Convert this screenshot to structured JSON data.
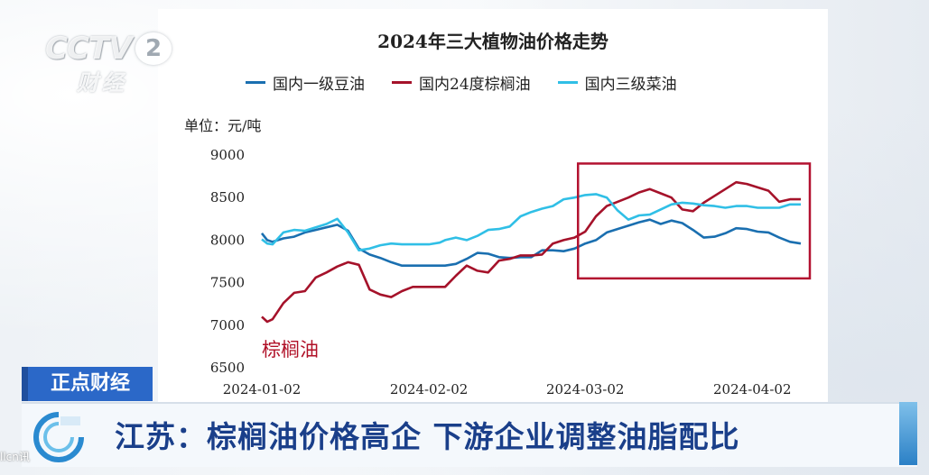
{
  "broadcast": {
    "logo_text": "CCTV",
    "logo_number": "2",
    "logo_channel": "财经",
    "program_tag": "正点财经",
    "headline": "江苏：棕榈油价格高企 下游企业调整油脂配比",
    "source_mark": "llcn讯"
  },
  "colors": {
    "soy": "#1a6fb0",
    "palm": "#a5122a",
    "rapeseed": "#30bfe6",
    "highlight_box": "#b31230",
    "program_tag_bg": "#2b68c8",
    "headline_text": "#1a3f8a"
  },
  "chart_data": {
    "type": "line",
    "title": "2024年三大植物油价格走势",
    "unit_label": "单位：元/吨",
    "annotation": "棕榈油",
    "x_tick_labels": [
      "2024-01-02",
      "2024-02-02",
      "2024-03-02",
      "2024-04-02"
    ],
    "x_ticks": [
      0,
      31,
      60,
      91
    ],
    "xlim": [
      0,
      100
    ],
    "ylim": [
      6500,
      9000
    ],
    "y_ticks": [
      6500,
      7000,
      7500,
      8000,
      8500,
      9000
    ],
    "grid": false,
    "legend_position": "top",
    "highlight_box_x": [
      59,
      100
    ],
    "highlight_box_y": [
      7550,
      8900
    ],
    "series": [
      {
        "name": "国内一级豆油",
        "color_key": "soy",
        "x": [
          0,
          1,
          2,
          4,
          6,
          8,
          10,
          12,
          14,
          16,
          18,
          20,
          22,
          24,
          26,
          28,
          30,
          31,
          33,
          34,
          36,
          38,
          40,
          42,
          44,
          46,
          48,
          50,
          52,
          54,
          56,
          58,
          60,
          62,
          64,
          66,
          68,
          70,
          72,
          74,
          76,
          78,
          80,
          82,
          84,
          86,
          88,
          90,
          92,
          94,
          96,
          98,
          100
        ],
        "y": [
          8080,
          8000,
          7980,
          8020,
          8040,
          8090,
          8120,
          8150,
          8180,
          8110,
          7900,
          7830,
          7790,
          7740,
          7700,
          7700,
          7700,
          7700,
          7700,
          7700,
          7720,
          7780,
          7850,
          7840,
          7800,
          7790,
          7800,
          7800,
          7880,
          7880,
          7870,
          7900,
          7960,
          8000,
          8090,
          8130,
          8170,
          8210,
          8240,
          8190,
          8230,
          8200,
          8120,
          8030,
          8040,
          8080,
          8140,
          8130,
          8100,
          8090,
          8030,
          7980,
          7960
        ]
      },
      {
        "name": "国内24度棕榈油",
        "color_key": "palm",
        "x": [
          0,
          1,
          2,
          4,
          6,
          8,
          10,
          12,
          14,
          16,
          18,
          20,
          22,
          24,
          26,
          28,
          30,
          31,
          33,
          34,
          36,
          38,
          40,
          42,
          44,
          46,
          48,
          50,
          52,
          54,
          56,
          58,
          60,
          62,
          64,
          66,
          68,
          70,
          72,
          74,
          76,
          78,
          80,
          82,
          84,
          86,
          88,
          90,
          92,
          94,
          96,
          98,
          100
        ],
        "y": [
          7100,
          7040,
          7070,
          7260,
          7380,
          7400,
          7560,
          7620,
          7690,
          7740,
          7710,
          7420,
          7360,
          7330,
          7400,
          7450,
          7450,
          7450,
          7450,
          7450,
          7580,
          7700,
          7640,
          7620,
          7760,
          7780,
          7820,
          7820,
          7830,
          7960,
          8000,
          8030,
          8100,
          8280,
          8400,
          8450,
          8500,
          8560,
          8600,
          8550,
          8500,
          8360,
          8340,
          8440,
          8520,
          8600,
          8680,
          8660,
          8620,
          8580,
          8450,
          8480,
          8480
        ]
      },
      {
        "name": "国内三级菜油",
        "color_key": "rapeseed",
        "x": [
          0,
          1,
          2,
          4,
          6,
          8,
          10,
          12,
          14,
          16,
          18,
          20,
          22,
          24,
          26,
          28,
          30,
          31,
          33,
          34,
          36,
          38,
          40,
          42,
          44,
          46,
          48,
          50,
          52,
          54,
          56,
          58,
          60,
          62,
          64,
          66,
          68,
          70,
          72,
          74,
          76,
          78,
          80,
          82,
          84,
          86,
          88,
          90,
          92,
          94,
          96,
          98,
          100
        ],
        "y": [
          8010,
          7960,
          7950,
          8090,
          8120,
          8110,
          8150,
          8190,
          8250,
          8090,
          7880,
          7900,
          7940,
          7960,
          7950,
          7950,
          7950,
          7950,
          7970,
          8000,
          8030,
          8000,
          8050,
          8120,
          8130,
          8160,
          8280,
          8330,
          8370,
          8400,
          8480,
          8500,
          8530,
          8540,
          8500,
          8350,
          8240,
          8290,
          8300,
          8360,
          8420,
          8440,
          8430,
          8410,
          8400,
          8380,
          8400,
          8400,
          8380,
          8380,
          8380,
          8420,
          8420
        ]
      }
    ]
  }
}
